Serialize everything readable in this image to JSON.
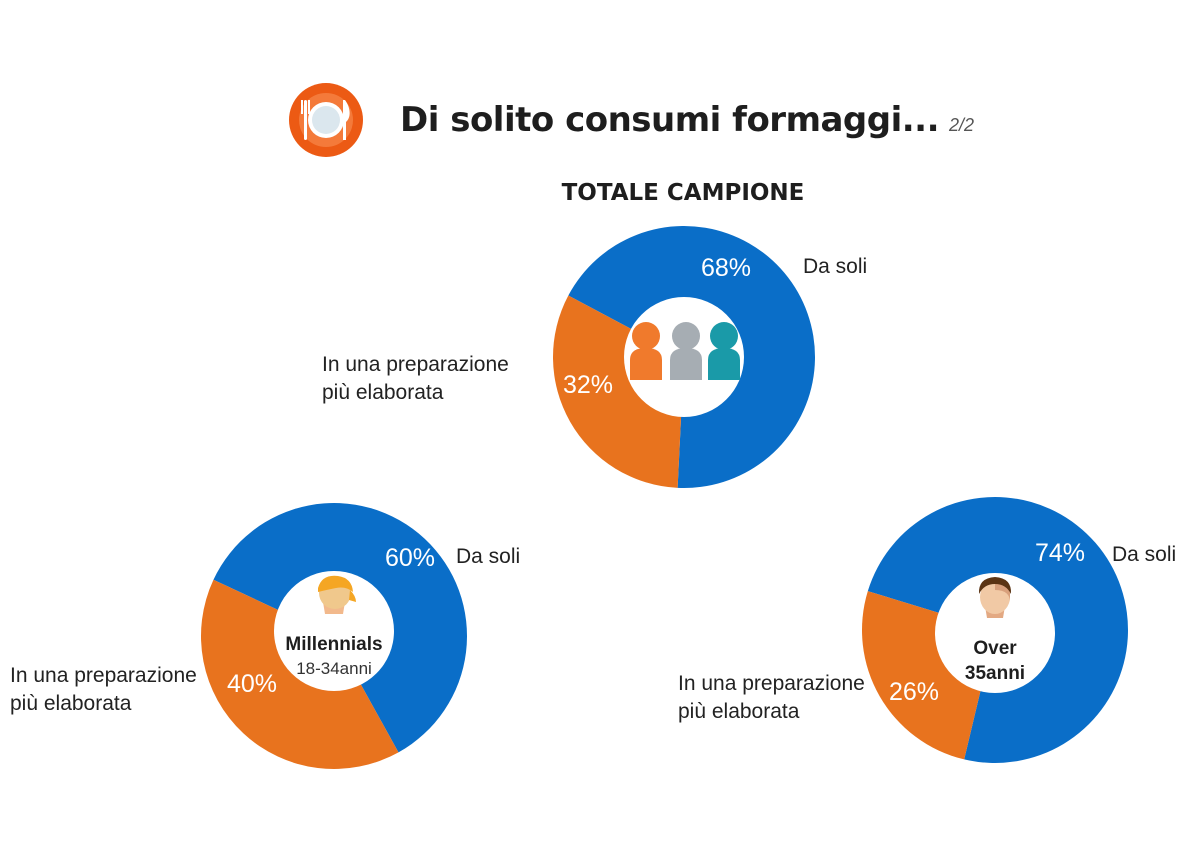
{
  "header": {
    "title": "Di solito consumi formaggi...",
    "page": "2/2",
    "icon": "plate-cutlery-icon"
  },
  "colors": {
    "blue": "#0a6ec8",
    "orange": "#e8731e",
    "logo_ring": "#ec5a14",
    "logo_inner": "#f47a3a"
  },
  "chart_data": [
    {
      "type": "pie",
      "title": "TOTALE CAMPIONE",
      "center_icon": "people-group-icon",
      "center_label": "",
      "center_sublabel": "",
      "slices": [
        {
          "label": "Da soli",
          "value": 68,
          "value_label": "68%",
          "color": "#0a6ec8"
        },
        {
          "label": "In una preparazione più elaborata",
          "value": 32,
          "value_label": "32%",
          "color": "#e8731e"
        }
      ]
    },
    {
      "type": "pie",
      "title": "",
      "center_icon": "young-person-icon",
      "center_label": "Millennials",
      "center_sublabel": "18-34anni",
      "slices": [
        {
          "label": "Da soli",
          "value": 60,
          "value_label": "60%",
          "color": "#0a6ec8"
        },
        {
          "label": "In una preparazione più elaborata",
          "value": 40,
          "value_label": "40%",
          "color": "#e8731e"
        }
      ]
    },
    {
      "type": "pie",
      "title": "",
      "center_icon": "adult-man-icon",
      "center_label": "Over",
      "center_sublabel": "35anni",
      "slices": [
        {
          "label": "Da soli",
          "value": 74,
          "value_label": "74%",
          "color": "#0a6ec8"
        },
        {
          "label": "In una preparazione più elaborata",
          "value": 26,
          "value_label": "26%",
          "color": "#e8731e"
        }
      ]
    }
  ]
}
